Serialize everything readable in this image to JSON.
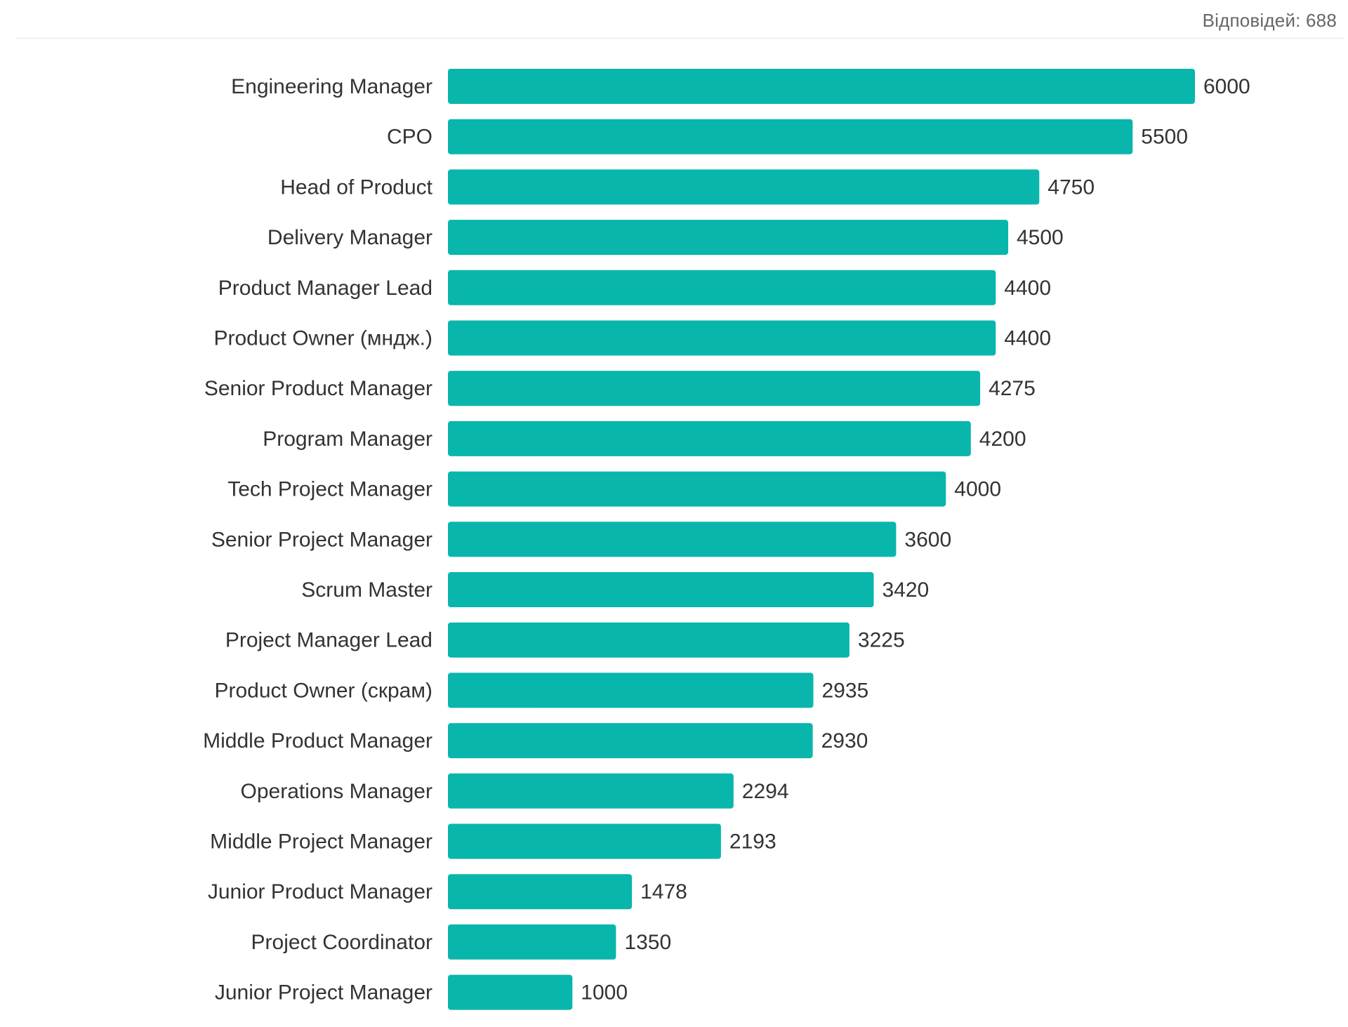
{
  "responses_label": "Відповідей: 688",
  "colors": {
    "bar": "#09b6ab",
    "text": "#333333",
    "muted": "#666666"
  },
  "chart_data": {
    "type": "bar",
    "orientation": "horizontal",
    "categories": [
      "Engineering Manager",
      "CPO",
      "Head of Product",
      "Delivery Manager",
      "Product Manager Lead",
      "Product Owner (мндж.)",
      "Senior Product Manager",
      "Program Manager",
      "Tech Project Manager",
      "Senior Project Manager",
      "Scrum Master",
      "Project Manager Lead",
      "Product Owner (скрам)",
      "Middle Product Manager",
      "Operations Manager",
      "Middle Project Manager",
      "Junior Product Manager",
      "Project Coordinator",
      "Junior Project Manager"
    ],
    "values": [
      6000,
      5500,
      4750,
      4500,
      4400,
      4400,
      4275,
      4200,
      4000,
      3600,
      3420,
      3225,
      2935,
      2930,
      2294,
      2193,
      1478,
      1350,
      1000
    ],
    "value_labels": [
      "6000",
      "5500",
      "4750",
      "4500",
      "4400",
      "4400",
      "4275",
      "4200",
      "4000",
      "3600",
      "3420",
      "3225",
      "2935",
      "2930",
      "2294",
      "2193",
      "1478",
      "1350",
      "1000"
    ],
    "title": "",
    "xlabel": "",
    "ylabel": "",
    "xlim": [
      0,
      6000
    ],
    "grid": false,
    "legend": "none"
  }
}
